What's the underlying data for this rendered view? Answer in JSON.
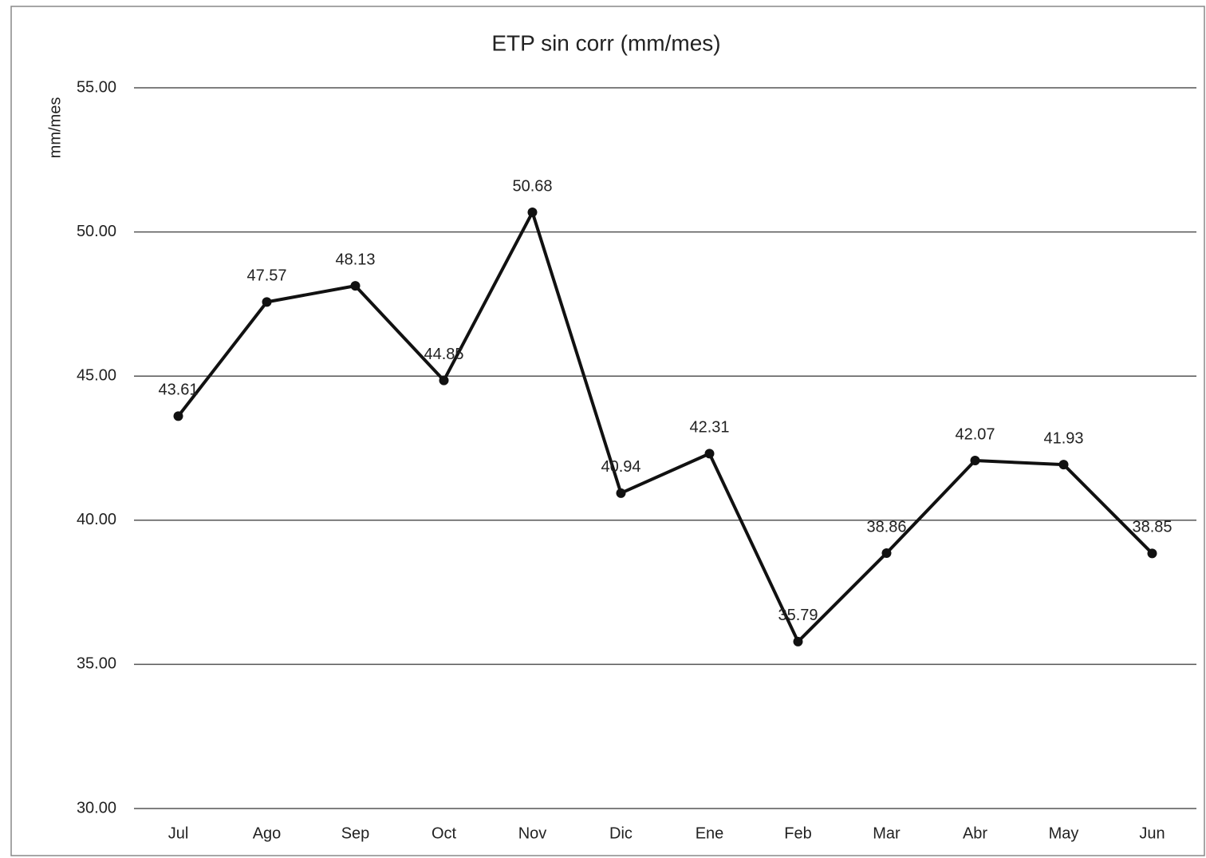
{
  "chart_data": {
    "type": "line",
    "title": "ETP sin corr (mm/mes)",
    "y_label": "mm/mes",
    "categories": [
      "Jul",
      "Ago",
      "Sep",
      "Oct",
      "Nov",
      "Dic",
      "Ene",
      "Feb",
      "Mar",
      "Abr",
      "May",
      "Jun"
    ],
    "series": [
      {
        "name": "ETP sin corr",
        "color": "#111111",
        "values": [
          43.61,
          47.57,
          48.13,
          44.85,
          50.68,
          40.94,
          42.31,
          35.79,
          38.86,
          42.07,
          41.93,
          38.85
        ]
      }
    ],
    "ylim": [
      30,
      55
    ],
    "yticks": [
      {
        "value": 30,
        "label": "30.00"
      },
      {
        "value": 35,
        "label": "35.00"
      },
      {
        "value": 40,
        "label": "40.00"
      },
      {
        "value": 45,
        "label": "45.00"
      },
      {
        "value": 50,
        "label": "50.00"
      },
      {
        "value": 55,
        "label": "55.00"
      }
    ],
    "grid": true
  }
}
